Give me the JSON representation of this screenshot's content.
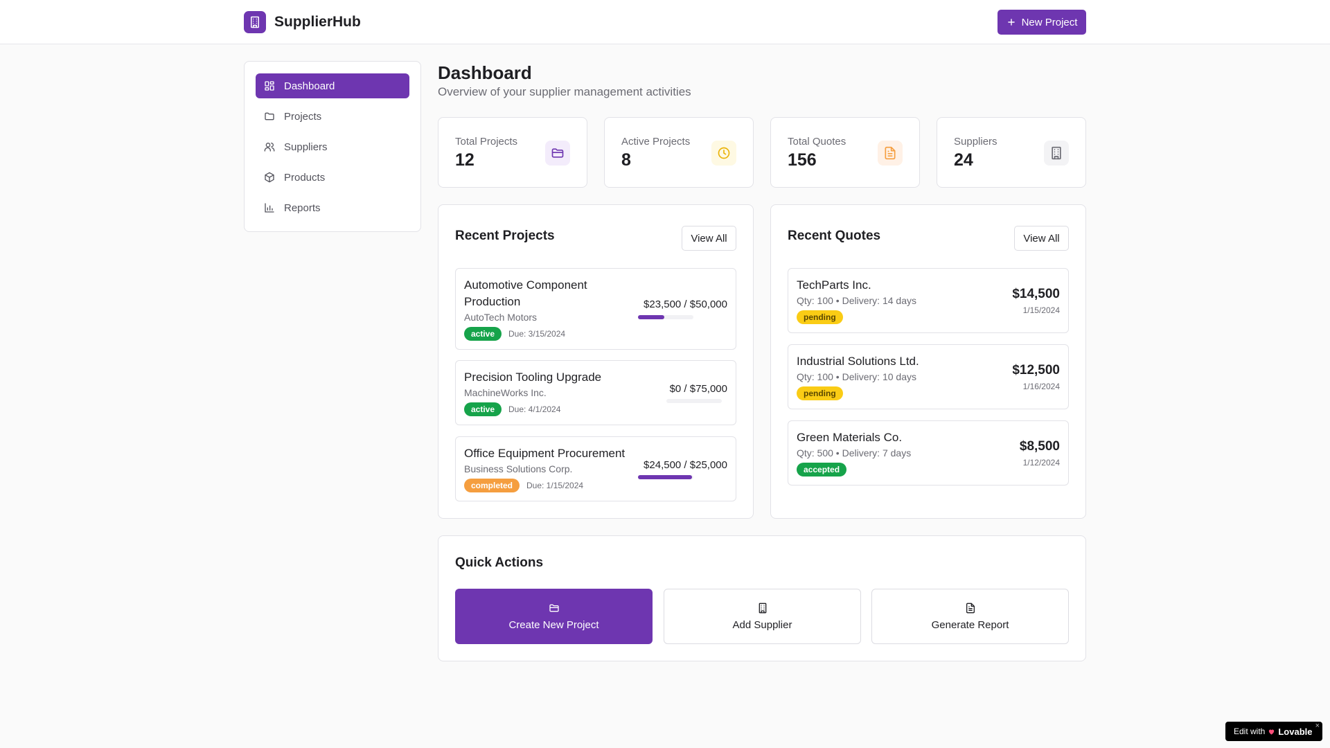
{
  "header": {
    "brand": "SupplierHub",
    "brand_icon": "building-icon",
    "new_project_label": "New Project"
  },
  "colors": {
    "accent": "#6e36b0",
    "active": "#16a34a",
    "completed": "#f59e3f",
    "pending": "#facc15"
  },
  "sidebar": {
    "items": [
      {
        "label": "Dashboard",
        "icon": "dashboard-icon",
        "active": true
      },
      {
        "label": "Projects",
        "icon": "folder-icon"
      },
      {
        "label": "Suppliers",
        "icon": "users-icon"
      },
      {
        "label": "Products",
        "icon": "package-icon"
      },
      {
        "label": "Reports",
        "icon": "bar-chart-icon"
      }
    ]
  },
  "page": {
    "title": "Dashboard",
    "subtitle": "Overview of your supplier management activities"
  },
  "stats": [
    {
      "label": "Total Projects",
      "value": "12",
      "icon": "folder-icon"
    },
    {
      "label": "Active Projects",
      "value": "8",
      "icon": "clock-icon"
    },
    {
      "label": "Total Quotes",
      "value": "156",
      "icon": "document-icon"
    },
    {
      "label": "Suppliers",
      "value": "24",
      "icon": "building-icon"
    }
  ],
  "recent_projects": {
    "title": "Recent Projects",
    "view_all": "View All",
    "items": [
      {
        "name": "Automotive Component Production",
        "client": "AutoTech Motors",
        "status": "active",
        "due": "Due: 3/15/2024",
        "budget": "$23,500 / $50,000",
        "progress": 0.47
      },
      {
        "name": "Precision Tooling Upgrade",
        "client": "MachineWorks Inc.",
        "status": "active",
        "due": "Due: 4/1/2024",
        "budget": "$0 / $75,000",
        "progress": 0
      },
      {
        "name": "Office Equipment Procurement",
        "client": "Business Solutions Corp.",
        "status": "completed",
        "due": "Due: 1/15/2024",
        "budget": "$24,500 / $25,000",
        "progress": 0.98
      }
    ]
  },
  "recent_quotes": {
    "title": "Recent Quotes",
    "view_all": "View All",
    "items": [
      {
        "supplier": "TechParts Inc.",
        "meta": "Qty: 100 • Delivery: 14 days",
        "status": "pending",
        "amount": "$14,500",
        "date": "1/15/2024"
      },
      {
        "supplier": "Industrial Solutions Ltd.",
        "meta": "Qty: 100 • Delivery: 10 days",
        "status": "pending",
        "amount": "$12,500",
        "date": "1/16/2024"
      },
      {
        "supplier": "Green Materials Co.",
        "meta": "Qty: 500 • Delivery: 7 days",
        "status": "accepted",
        "amount": "$8,500",
        "date": "1/12/2024"
      }
    ]
  },
  "quick_actions": {
    "title": "Quick Actions",
    "items": [
      {
        "label": "Create New Project",
        "icon": "folder-icon"
      },
      {
        "label": "Add Supplier",
        "icon": "building-icon"
      },
      {
        "label": "Generate Report",
        "icon": "document-icon"
      }
    ]
  },
  "badge": {
    "prefix": "Edit with",
    "brand": "Lovable",
    "close": "×"
  }
}
